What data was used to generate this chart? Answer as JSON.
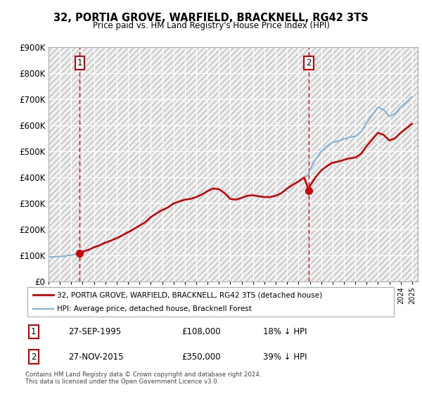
{
  "title": "32, PORTIA GROVE, WARFIELD, BRACKNELL, RG42 3TS",
  "subtitle": "Price paid vs. HM Land Registry's House Price Index (HPI)",
  "ylim": [
    0,
    900000
  ],
  "yticks": [
    0,
    100000,
    200000,
    300000,
    400000,
    500000,
    600000,
    700000,
    800000,
    900000
  ],
  "ytick_labels": [
    "£0",
    "£100K",
    "£200K",
    "£300K",
    "£400K",
    "£500K",
    "£600K",
    "£700K",
    "£800K",
    "£900K"
  ],
  "hpi_color": "#7bafd4",
  "price_color": "#cc0000",
  "marker_color": "#cc0000",
  "dashed_line_color": "#cc0000",
  "transaction1_price": 108000,
  "transaction1_label": "1",
  "transaction2_price": 350000,
  "transaction2_label": "2",
  "legend_line1": "32, PORTIA GROVE, WARFIELD, BRACKNELL, RG42 3TS (detached house)",
  "legend_line2": "HPI: Average price, detached house, Bracknell Forest",
  "table_row1": [
    "1",
    "27-SEP-1995",
    "£108,000",
    "18% ↓ HPI"
  ],
  "table_row2": [
    "2",
    "27-NOV-2015",
    "£350,000",
    "39% ↓ HPI"
  ],
  "footnote": "Contains HM Land Registry data © Crown copyright and database right 2024.\nThis data is licensed under the Open Government Licence v3.0.",
  "xlim_start": 1993.0,
  "xlim_end": 2025.5,
  "years_hpi": [
    1993.0,
    1993.5,
    1994.0,
    1994.5,
    1995.0,
    1995.5,
    1995.75,
    1996.0,
    1996.5,
    1997.0,
    1997.5,
    1998.0,
    1998.5,
    1999.0,
    1999.5,
    2000.0,
    2000.5,
    2001.0,
    2001.5,
    2002.0,
    2002.5,
    2003.0,
    2003.5,
    2004.0,
    2004.5,
    2005.0,
    2005.5,
    2006.0,
    2006.5,
    2007.0,
    2007.5,
    2008.0,
    2008.5,
    2009.0,
    2009.5,
    2010.0,
    2010.5,
    2011.0,
    2011.5,
    2012.0,
    2012.5,
    2013.0,
    2013.5,
    2014.0,
    2014.5,
    2015.0,
    2015.5,
    2015.92,
    2016.0,
    2016.5,
    2017.0,
    2017.5,
    2018.0,
    2018.5,
    2019.0,
    2019.5,
    2020.0,
    2020.5,
    2021.0,
    2021.5,
    2022.0,
    2022.5,
    2023.0,
    2023.5,
    2024.0,
    2024.5,
    2025.0
  ],
  "hpi_values": [
    95000,
    95500,
    97000,
    99000,
    102000,
    106000,
    108000,
    115000,
    122000,
    132000,
    140000,
    150000,
    158000,
    167000,
    178000,
    190000,
    202000,
    215000,
    228000,
    248000,
    262000,
    275000,
    285000,
    300000,
    308000,
    315000,
    318000,
    325000,
    335000,
    348000,
    358000,
    355000,
    340000,
    318000,
    315000,
    322000,
    330000,
    332000,
    328000,
    325000,
    325000,
    330000,
    340000,
    358000,
    372000,
    385000,
    400000,
    410000,
    430000,
    470000,
    500000,
    520000,
    535000,
    540000,
    548000,
    555000,
    558000,
    575000,
    610000,
    640000,
    670000,
    660000,
    635000,
    645000,
    670000,
    690000,
    710000
  ]
}
